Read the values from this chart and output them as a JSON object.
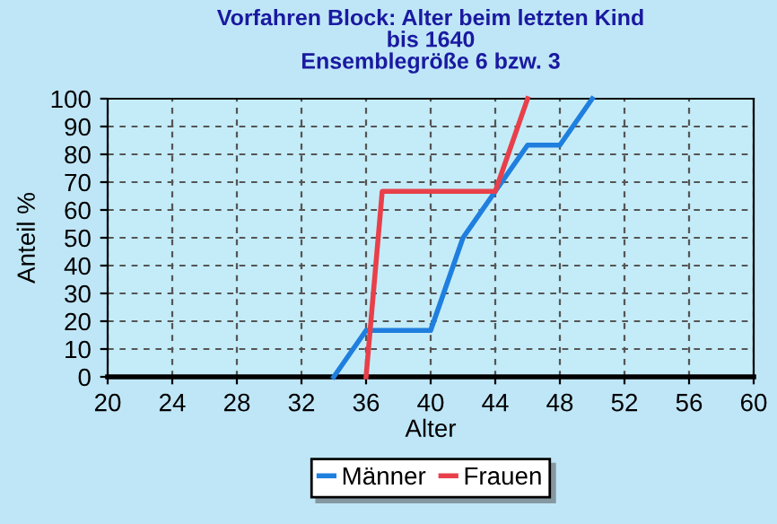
{
  "chart_data": {
    "type": "line",
    "title": "Vorfahren Block: Alter beim letzten Kind\nbis 1640\nEnsemblegröße 6 bzw. 3",
    "xlabel": "Alter",
    "ylabel": "Anteil %",
    "xlim": [
      20,
      60
    ],
    "xticks": [
      20,
      24,
      28,
      32,
      36,
      40,
      44,
      48,
      52,
      56,
      60
    ],
    "ylim": [
      0,
      100
    ],
    "yticks": [
      0,
      10,
      20,
      30,
      40,
      50,
      60,
      70,
      80,
      90,
      100
    ],
    "grid": true,
    "legend": "bottom",
    "marker": "none",
    "line_style": "solid",
    "series": [
      {
        "name": "Männer",
        "color": "#1f7fdf",
        "x": [
          34,
          36,
          40,
          42,
          44,
          46,
          48,
          50
        ],
        "values": [
          0,
          16.7,
          16.7,
          50,
          66.7,
          83.3,
          83.3,
          100
        ]
      },
      {
        "name": "Frauen",
        "color": "#e8404a",
        "x": [
          36,
          37,
          44,
          46
        ],
        "values": [
          0,
          66.7,
          66.7,
          100
        ]
      }
    ]
  }
}
